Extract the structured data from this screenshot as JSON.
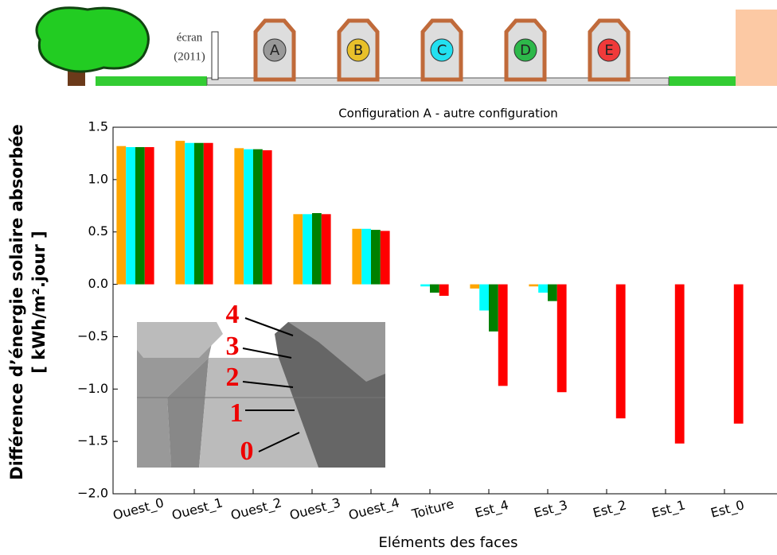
{
  "header": {
    "screen_label": "écran",
    "screen_year": "(2011)",
    "houses": [
      "A",
      "B",
      "C",
      "D",
      "E"
    ]
  },
  "chart_data": {
    "type": "bar",
    "title": "Configuration A - autre configuration",
    "y_label": "Différence d’énergie solaire absorbée",
    "y_label_unit": "[ kWh/m².jour ]",
    "x_label": "Eléments des faces",
    "categories": [
      "Ouest_0",
      "Ouest_1",
      "Ouest_2",
      "Ouest_3",
      "Ouest_4",
      "Toiture",
      "Est_4",
      "Est_3",
      "Est_2",
      "Est_1",
      "Est_0"
    ],
    "series": [
      {
        "color": "#ffa500",
        "values": [
          1.32,
          1.37,
          1.3,
          0.67,
          0.53,
          0.0,
          -0.04,
          -0.02,
          0,
          0,
          0
        ]
      },
      {
        "color": "#00ffff",
        "values": [
          1.31,
          1.35,
          1.29,
          0.67,
          0.53,
          -0.02,
          -0.25,
          -0.08,
          0,
          0,
          0
        ]
      },
      {
        "color": "#008000",
        "values": [
          1.31,
          1.35,
          1.29,
          0.68,
          0.52,
          -0.08,
          -0.45,
          -0.16,
          0,
          0,
          0
        ]
      },
      {
        "color": "#ff0000",
        "values": [
          1.31,
          1.35,
          1.28,
          0.67,
          0.51,
          -0.11,
          -0.97,
          -1.03,
          -1.28,
          -1.52,
          -1.33
        ]
      }
    ],
    "ylim": [
      -2.0,
      1.5
    ],
    "yticks": [
      {
        "value": -2.0,
        "label": "−2.0"
      },
      {
        "value": -1.5,
        "label": "−1.5"
      },
      {
        "value": -1.0,
        "label": "−1.0"
      },
      {
        "value": -0.5,
        "label": "−0.5"
      },
      {
        "value": 0.0,
        "label": "0.0"
      },
      0.5,
      {
        "value": 1.0,
        "label": "1.0"
      },
      1.5
    ]
  },
  "inset": {
    "labels": [
      "4",
      "3",
      "2",
      "1",
      "0"
    ]
  }
}
